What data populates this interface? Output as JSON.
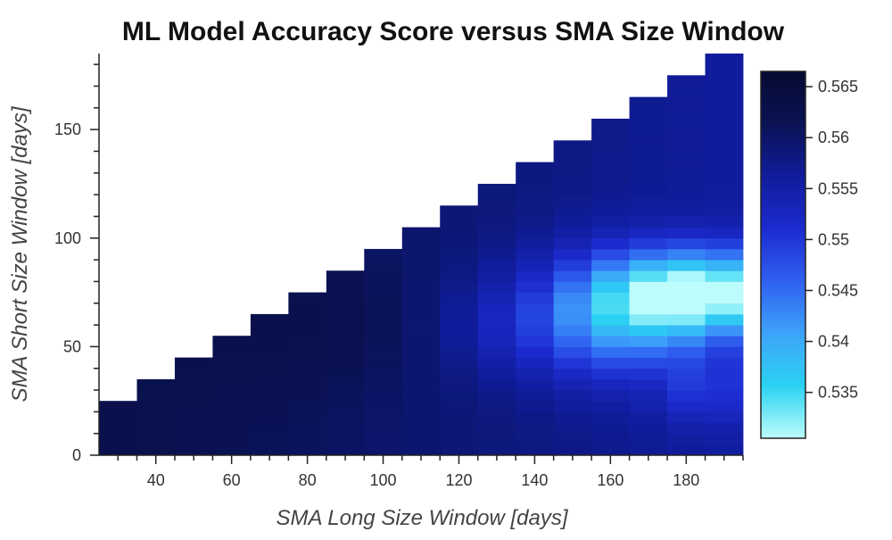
{
  "chart_data": {
    "type": "heatmap",
    "title": "ML Model Accuracy Score versus SMA Size Window",
    "xlabel": "SMA Long Size Window [days]",
    "ylabel": "SMA Short Size Window [days]",
    "x_ticks": [
      "40",
      "60",
      "80",
      "100",
      "120",
      "140",
      "160",
      "180"
    ],
    "y_ticks": [
      "0",
      "50",
      "100",
      "150"
    ],
    "xlim": [
      25,
      195
    ],
    "ylim": [
      0,
      185
    ],
    "x_columns": [
      30,
      40,
      50,
      60,
      70,
      80,
      90,
      100,
      110,
      120,
      130,
      140,
      150,
      160,
      170,
      180,
      190
    ],
    "y_max_per_column": [
      20,
      30,
      40,
      50,
      60,
      70,
      80,
      90,
      100,
      110,
      120,
      130,
      140,
      150,
      160,
      170,
      180
    ],
    "y_step": 5,
    "colorbar": {
      "min": 0.5305,
      "max": 0.5665,
      "ticks": [
        "0.535",
        "0.54",
        "0.545",
        "0.55",
        "0.555",
        "0.56",
        "0.565"
      ],
      "colors": [
        "#bdfcfc",
        "#2bd2f2",
        "#3ea3fa",
        "#2f5ff0",
        "#1c2bcf",
        "#101c9a",
        "#0a1254",
        "#060b33"
      ]
    },
    "grid": false,
    "colorbar_position": "right"
  }
}
